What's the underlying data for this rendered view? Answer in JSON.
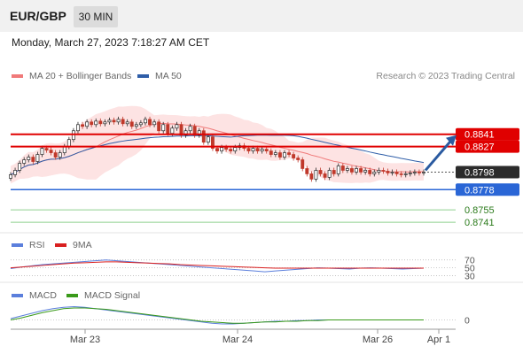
{
  "header": {
    "symbol": "EUR/GBP",
    "timeframe": "30 MIN"
  },
  "datetime": "Monday, March 27, 2023 7:18:27 AM CET",
  "copyright": "Research © 2023 Trading Central",
  "colors": {
    "resistance": "#e00000",
    "support": "#2a66d6",
    "target": "#2ca02c",
    "ma20": "#f07a7a",
    "ma50": "#2f5ea8",
    "rsi": "#5b7fdc",
    "rsi_ma": "#d91f1f",
    "macd": "#5b7fdc",
    "macd_signal": "#3a9a1a",
    "arrow": "#2a5aa0"
  },
  "chart_data": [
    {
      "type": "candlestick",
      "title": "EUR/GBP",
      "timeframe": "30 MIN",
      "legend": [
        {
          "name": "MA 20 + Bollinger Bands",
          "color": "#f07a7a"
        },
        {
          "name": "MA 50",
          "color": "#2f5ea8"
        }
      ],
      "x_tick_labels": [
        "Mar 23",
        "Mar 24",
        "Mar 26",
        "Apr 1"
      ],
      "ylim": [
        0.873,
        0.8885
      ],
      "last_price": 0.8798,
      "levels": [
        {
          "label": "0.8841",
          "value": 0.8841,
          "kind": "resistance"
        },
        {
          "label": "0.8827",
          "value": 0.8827,
          "kind": "resistance"
        },
        {
          "label": "0.8798",
          "value": 0.8798,
          "kind": "last"
        },
        {
          "label": "0.8778",
          "value": 0.8778,
          "kind": "support"
        },
        {
          "label": "0.8755",
          "value": 0.8755,
          "kind": "target"
        },
        {
          "label": "0.8741",
          "value": 0.8741,
          "kind": "target"
        }
      ],
      "arrow": {
        "from": 0.88,
        "to": 0.8838,
        "direction": "up"
      },
      "closes": [
        0.8795,
        0.88,
        0.8808,
        0.8812,
        0.8815,
        0.881,
        0.8818,
        0.8825,
        0.8823,
        0.882,
        0.8815,
        0.882,
        0.8827,
        0.8835,
        0.8845,
        0.8852,
        0.885,
        0.8855,
        0.8852,
        0.8856,
        0.8853,
        0.8855,
        0.8857,
        0.8855,
        0.8858,
        0.8853,
        0.8855,
        0.885,
        0.8852,
        0.8854,
        0.8858,
        0.8852,
        0.8855,
        0.8845,
        0.8852,
        0.8842,
        0.8848,
        0.8852,
        0.884,
        0.8845,
        0.885,
        0.884,
        0.8845,
        0.8832,
        0.8838,
        0.8825,
        0.8822,
        0.8826,
        0.8824,
        0.8822,
        0.8826,
        0.8828,
        0.8825,
        0.8822,
        0.8825,
        0.8822,
        0.8824,
        0.8822,
        0.8818,
        0.882,
        0.8815,
        0.882,
        0.8818,
        0.8814,
        0.8812,
        0.8802,
        0.8796,
        0.879,
        0.88,
        0.8796,
        0.8792,
        0.88,
        0.8796,
        0.8805,
        0.88,
        0.8802,
        0.8798,
        0.8802,
        0.8798,
        0.88,
        0.8796,
        0.8798,
        0.88,
        0.8799,
        0.8797,
        0.8798,
        0.8796,
        0.8795,
        0.8796,
        0.8797,
        0.8798,
        0.8797,
        0.8798
      ]
    },
    {
      "type": "line",
      "title": "RSI",
      "legend": [
        {
          "name": "RSI",
          "color": "#5b7fdc"
        },
        {
          "name": "9MA",
          "color": "#d91f1f"
        }
      ],
      "y_tick_labels": [
        "70",
        "50",
        "30"
      ],
      "ylim": [
        20,
        85
      ],
      "series": [
        {
          "name": "RSI",
          "values": [
            48,
            52,
            55,
            58,
            60,
            62,
            64,
            66,
            68,
            70,
            68,
            66,
            64,
            62,
            60,
            58,
            56,
            54,
            52,
            50,
            48,
            46,
            44,
            42,
            40,
            42,
            44,
            46,
            48,
            50,
            49,
            48,
            47,
            49,
            50,
            49,
            48,
            47,
            48,
            49
          ]
        },
        {
          "name": "9MA",
          "values": [
            50,
            52,
            54,
            56,
            58,
            60,
            62,
            63,
            64,
            65,
            65,
            64,
            63,
            62,
            61,
            60,
            58,
            57,
            56,
            55,
            54,
            53,
            52,
            51,
            50,
            49,
            49,
            49,
            49,
            49,
            49,
            49,
            49,
            49,
            49,
            49,
            49,
            49,
            49,
            49
          ]
        }
      ]
    },
    {
      "type": "line",
      "title": "MACD",
      "legend": [
        {
          "name": "MACD",
          "color": "#5b7fdc"
        },
        {
          "name": "MACD Signal",
          "color": "#3a9a1a"
        }
      ],
      "y_tick_labels": [
        "0"
      ],
      "ylim": [
        -0.001,
        0.0022
      ],
      "series": [
        {
          "name": "MACD",
          "values": [
            0.0002,
            0.0006,
            0.001,
            0.0014,
            0.0017,
            0.0019,
            0.002,
            0.0019,
            0.0017,
            0.0015,
            0.0013,
            0.0011,
            0.0009,
            0.0007,
            0.0005,
            0.0003,
            0.0001,
            -0.0001,
            -0.0003,
            -0.0005,
            -0.0006,
            -0.0006,
            -0.0005,
            -0.0004,
            -0.0003,
            -0.0002,
            -0.0002,
            -0.0001,
            -0.0001,
            0.0,
            0.0,
            0.0,
            0.0,
            0.0,
            0.0,
            0.0,
            0.0,
            0.0,
            0.0,
            0.0
          ]
        },
        {
          "name": "MACD Signal",
          "values": [
            0.0,
            0.0003,
            0.0007,
            0.0011,
            0.0014,
            0.0017,
            0.0018,
            0.0018,
            0.0017,
            0.0016,
            0.0014,
            0.0012,
            0.001,
            0.0008,
            0.0006,
            0.0004,
            0.0002,
            0.0,
            -0.0002,
            -0.0003,
            -0.0004,
            -0.0005,
            -0.0005,
            -0.0004,
            -0.0003,
            -0.0003,
            -0.0002,
            -0.0002,
            -0.0001,
            -0.0001,
            0.0,
            0.0,
            0.0,
            0.0,
            0.0,
            0.0,
            0.0,
            0.0,
            0.0,
            0.0
          ]
        }
      ]
    }
  ]
}
